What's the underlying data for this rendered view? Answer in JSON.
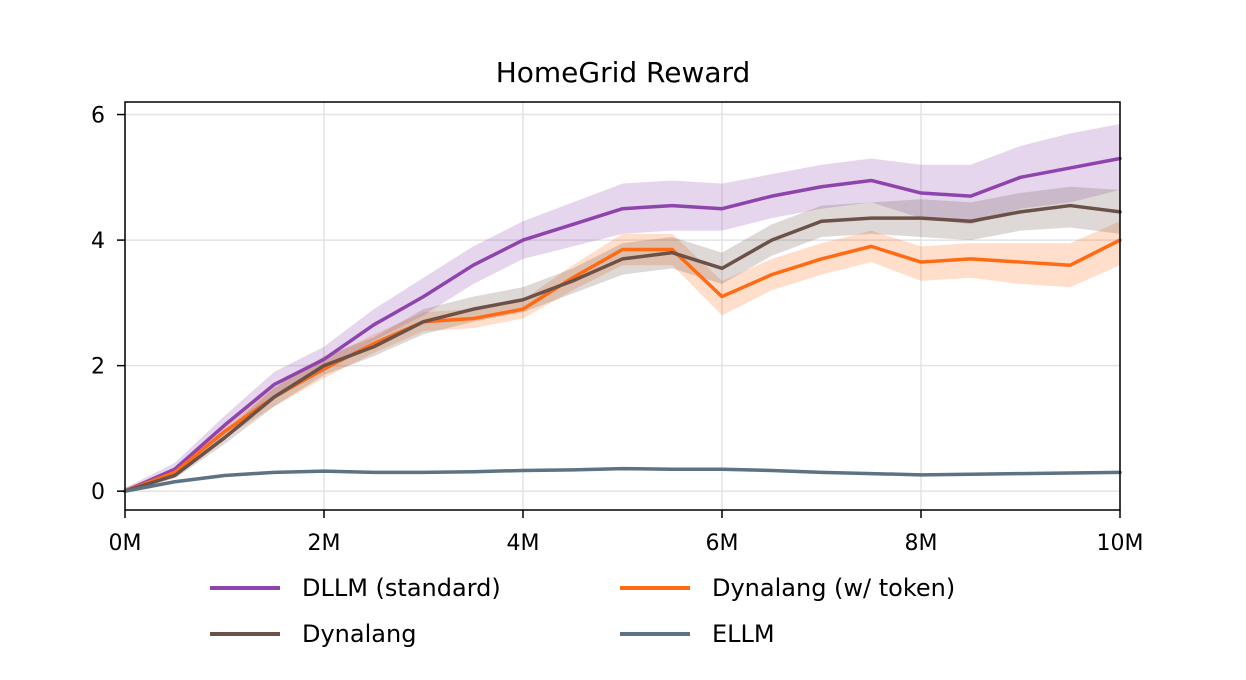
{
  "chart_data": {
    "type": "line",
    "title": "HomeGrid Reward",
    "xlabel": "",
    "ylabel": "",
    "xlim": [
      0,
      10
    ],
    "ylim": [
      -0.3,
      6.2
    ],
    "x_ticks": [
      {
        "value": 0,
        "label": "0M"
      },
      {
        "value": 2,
        "label": "2M"
      },
      {
        "value": 4,
        "label": "4M"
      },
      {
        "value": 6,
        "label": "6M"
      },
      {
        "value": 8,
        "label": "8M"
      },
      {
        "value": 10,
        "label": "10M"
      }
    ],
    "y_ticks": [
      {
        "value": 0,
        "label": "0"
      },
      {
        "value": 2,
        "label": "2"
      },
      {
        "value": 4,
        "label": "4"
      },
      {
        "value": 6,
        "label": "6"
      }
    ],
    "grid": true,
    "legend_position": "bottom",
    "x": [
      0,
      0.5,
      1.0,
      1.5,
      2.0,
      2.5,
      3.0,
      3.5,
      4.0,
      4.5,
      5.0,
      5.5,
      6.0,
      6.5,
      7.0,
      7.5,
      8.0,
      8.5,
      9.0,
      9.5,
      10.0
    ],
    "series": [
      {
        "name": "DLLM (standard)",
        "color": "#8e44ad",
        "values": [
          0.0,
          0.35,
          1.05,
          1.7,
          2.1,
          2.65,
          3.1,
          3.6,
          4.0,
          4.25,
          4.5,
          4.55,
          4.5,
          4.7,
          4.85,
          4.95,
          4.75,
          4.7,
          5.0,
          5.15,
          5.3
        ],
        "lower": [
          0.0,
          0.3,
          0.9,
          1.5,
          1.9,
          2.4,
          2.8,
          3.3,
          3.7,
          3.9,
          4.1,
          4.15,
          4.15,
          4.35,
          4.5,
          4.6,
          4.35,
          4.25,
          4.5,
          4.6,
          4.8
        ],
        "upper": [
          0.05,
          0.45,
          1.2,
          1.9,
          2.3,
          2.9,
          3.4,
          3.9,
          4.3,
          4.6,
          4.9,
          4.95,
          4.9,
          5.05,
          5.2,
          5.3,
          5.2,
          5.2,
          5.5,
          5.7,
          5.85
        ]
      },
      {
        "name": "Dynalang (w/ token)",
        "color": "#ff6a13",
        "values": [
          0.0,
          0.3,
          0.95,
          1.5,
          1.95,
          2.35,
          2.7,
          2.75,
          2.9,
          3.4,
          3.85,
          3.85,
          3.1,
          3.45,
          3.7,
          3.9,
          3.65,
          3.7,
          3.65,
          3.6,
          4.0
        ],
        "lower": [
          0.0,
          0.25,
          0.85,
          1.35,
          1.8,
          2.2,
          2.55,
          2.6,
          2.75,
          3.2,
          3.6,
          3.6,
          2.8,
          3.2,
          3.45,
          3.65,
          3.35,
          3.4,
          3.3,
          3.25,
          3.6
        ],
        "upper": [
          0.05,
          0.35,
          1.05,
          1.65,
          2.1,
          2.5,
          2.85,
          2.9,
          3.05,
          3.6,
          4.1,
          4.1,
          3.35,
          3.7,
          3.95,
          4.15,
          3.9,
          3.95,
          3.95,
          3.95,
          4.3
        ]
      },
      {
        "name": "Dynalang",
        "color": "#6b5148",
        "values": [
          0.0,
          0.25,
          0.85,
          1.5,
          2.0,
          2.3,
          2.7,
          2.9,
          3.05,
          3.35,
          3.7,
          3.8,
          3.55,
          4.0,
          4.3,
          4.35,
          4.35,
          4.3,
          4.45,
          4.55,
          4.45
        ],
        "lower": [
          0.0,
          0.2,
          0.75,
          1.35,
          1.85,
          2.15,
          2.5,
          2.7,
          2.85,
          3.15,
          3.45,
          3.55,
          3.3,
          3.75,
          4.05,
          4.1,
          4.05,
          4.0,
          4.15,
          4.2,
          4.1
        ],
        "upper": [
          0.05,
          0.3,
          0.95,
          1.65,
          2.15,
          2.45,
          2.9,
          3.1,
          3.25,
          3.55,
          3.95,
          4.05,
          3.8,
          4.25,
          4.55,
          4.6,
          4.65,
          4.6,
          4.75,
          4.85,
          4.8
        ]
      },
      {
        "name": "ELLM",
        "color": "#5d7283",
        "values": [
          0.0,
          0.15,
          0.25,
          0.3,
          0.32,
          0.3,
          0.3,
          0.31,
          0.33,
          0.34,
          0.36,
          0.35,
          0.35,
          0.33,
          0.3,
          0.28,
          0.26,
          0.27,
          0.28,
          0.29,
          0.3
        ],
        "lower": [
          0.0,
          0.13,
          0.23,
          0.28,
          0.3,
          0.28,
          0.28,
          0.29,
          0.31,
          0.32,
          0.34,
          0.33,
          0.33,
          0.31,
          0.28,
          0.26,
          0.24,
          0.25,
          0.26,
          0.27,
          0.28
        ],
        "upper": [
          0.02,
          0.17,
          0.27,
          0.32,
          0.34,
          0.32,
          0.32,
          0.33,
          0.35,
          0.36,
          0.38,
          0.37,
          0.37,
          0.35,
          0.32,
          0.3,
          0.28,
          0.29,
          0.3,
          0.31,
          0.32
        ]
      }
    ],
    "legend_order": [
      "DLLM (standard)",
      "Dynalang (w/ token)",
      "Dynalang",
      "ELLM"
    ]
  }
}
